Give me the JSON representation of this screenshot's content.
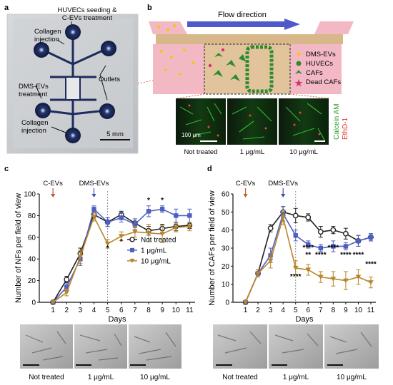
{
  "panels": {
    "a": {
      "letter": "a",
      "labels": {
        "huvec": [
          "HUVECs seeding &",
          "C-EVs treatment"
        ],
        "collagen_top": [
          "Collagen",
          "injection"
        ],
        "dms": [
          "DMS-EVs",
          "treatment"
        ],
        "outlets": "Outlets",
        "collagen_bottom": [
          "Collagen",
          "injection"
        ],
        "scale": "5 mm"
      }
    },
    "b": {
      "letter": "b",
      "flow": "Flow direction",
      "legend": [
        "DMS-EVs",
        "HUVECs",
        "CAFs",
        "Dead CAFs"
      ],
      "micrographs": [
        "Not treated",
        "1 μg/mL",
        "10 μg/mL"
      ],
      "scale": "100 μm",
      "stain_labels": [
        "Calcein AM",
        "EthD-1"
      ]
    },
    "bottom_labels": [
      "Not treated",
      "1 μg/mL",
      "10 μg/mL"
    ]
  },
  "chart_data": [
    {
      "id": "c",
      "type": "line",
      "title": "",
      "xlabel": "Days",
      "ylabel": "Number of NFs per field of view",
      "xlim": [
        0,
        11.4
      ],
      "ylim": [
        0,
        100
      ],
      "xticks": [
        1,
        2,
        3,
        4,
        5,
        6,
        7,
        8,
        9,
        10,
        11
      ],
      "yticks": [
        0,
        20,
        40,
        60,
        80,
        100
      ],
      "annotations": [
        "C-EVs",
        "DMS-EVs"
      ],
      "annotation_x": [
        1,
        4
      ],
      "dashed_line_x": 5,
      "legend": {
        "placement": "right",
        "entries": [
          "Not treated",
          "1 μg/mL",
          "10 μg/mL"
        ]
      },
      "series": [
        {
          "name": "Not treated",
          "color": "#222222",
          "marker": "circle-open",
          "x": [
            1,
            2,
            3,
            4,
            5,
            6,
            7,
            8,
            9,
            10,
            11
          ],
          "y": [
            0,
            21,
            45,
            81,
            74,
            81,
            73,
            66,
            68,
            70,
            71
          ],
          "err": [
            0,
            3,
            5,
            3,
            4,
            3,
            4,
            4,
            4,
            4,
            3
          ]
        },
        {
          "name": "1 μg/mL",
          "color": "#4d5fc1",
          "marker": "square",
          "x": [
            1,
            2,
            3,
            4,
            5,
            6,
            7,
            8,
            9,
            10,
            11
          ],
          "y": [
            0,
            14,
            40,
            86,
            74,
            78,
            72,
            84,
            86,
            80,
            80
          ],
          "err": [
            0,
            3,
            6,
            3,
            4,
            4,
            5,
            5,
            3,
            6,
            6
          ]
        },
        {
          "name": "10 μg/mL",
          "color": "#b8862a",
          "marker": "triangle-down",
          "x": [
            1,
            2,
            3,
            4,
            5,
            6,
            7,
            8,
            9,
            10,
            11
          ],
          "y": [
            0,
            9,
            42,
            79,
            54,
            61,
            65,
            64,
            63,
            69,
            70
          ],
          "err": [
            0,
            3,
            6,
            4,
            4,
            4,
            5,
            8,
            8,
            4,
            4
          ]
        }
      ],
      "significance": [
        {
          "x": 5,
          "y": 48,
          "text": "*"
        },
        {
          "x": 6,
          "y": 54,
          "text": "*"
        },
        {
          "x": 8,
          "y": 92,
          "text": "*"
        },
        {
          "x": 9,
          "y": 92,
          "text": "*"
        }
      ]
    },
    {
      "id": "d",
      "type": "line",
      "title": "",
      "xlabel": "Days",
      "ylabel": "Number of CAFs per field of view",
      "xlim": [
        0,
        11.4
      ],
      "ylim": [
        0,
        60
      ],
      "xticks": [
        1,
        2,
        3,
        4,
        5,
        6,
        7,
        8,
        9,
        10,
        11
      ],
      "yticks": [
        0,
        10,
        20,
        30,
        40,
        50,
        60
      ],
      "annotations": [
        "C-EVs",
        "DMS-EVs"
      ],
      "annotation_x": [
        1,
        4
      ],
      "dashed_line_x": 5,
      "series": [
        {
          "name": "Not treated",
          "color": "#222222",
          "marker": "circle-open",
          "x": [
            1,
            2,
            3,
            4,
            5,
            6,
            7,
            8,
            9,
            10,
            11
          ],
          "y": [
            0,
            16,
            41,
            50,
            48,
            47,
            39,
            40,
            38,
            34,
            36
          ],
          "err": [
            0,
            2,
            2,
            3,
            4,
            2,
            3,
            2,
            3,
            3,
            2
          ]
        },
        {
          "name": "1 μg/mL",
          "color": "#4d5fc1",
          "marker": "square",
          "x": [
            1,
            2,
            3,
            4,
            5,
            6,
            7,
            8,
            9,
            10,
            11
          ],
          "y": [
            0,
            16,
            26,
            49,
            37,
            32,
            30,
            31,
            31,
            34,
            36
          ],
          "err": [
            0,
            2,
            4,
            4,
            3,
            2,
            2,
            3,
            2,
            3,
            2
          ]
        },
        {
          "name": "10 μg/mL",
          "color": "#b8862a",
          "marker": "triangle-down",
          "x": [
            1,
            2,
            3,
            4,
            5,
            6,
            7,
            8,
            9,
            10,
            11
          ],
          "y": [
            0,
            16,
            23,
            47,
            19,
            18,
            14,
            13,
            12,
            14,
            11
          ],
          "err": [
            0,
            2,
            4,
            4,
            4,
            3,
            3,
            4,
            5,
            4,
            3
          ]
        }
      ],
      "significance": [
        {
          "x": 6,
          "y": 25,
          "text": "**"
        },
        {
          "x": 5,
          "y": 13,
          "text": "****"
        },
        {
          "x": 6,
          "y": 29,
          "text": "****"
        },
        {
          "x": 7,
          "y": 25,
          "text": "****"
        },
        {
          "x": 8,
          "y": 29,
          "text": "****"
        },
        {
          "x": 9,
          "y": 25,
          "text": "****"
        },
        {
          "x": 10,
          "y": 25,
          "text": "****"
        },
        {
          "x": 11,
          "y": 20,
          "text": "****"
        }
      ]
    }
  ]
}
